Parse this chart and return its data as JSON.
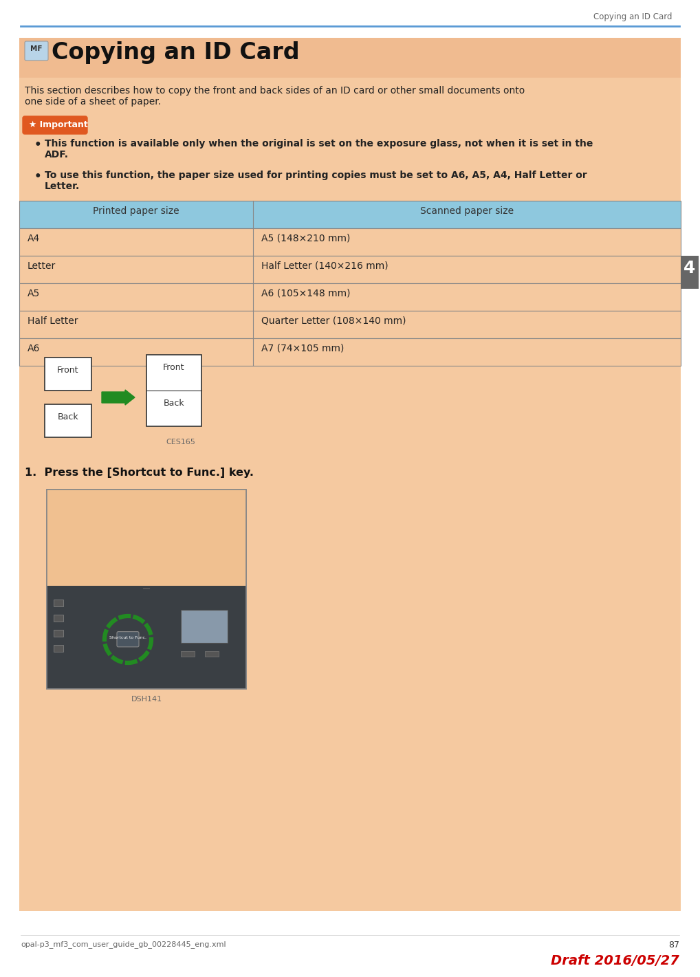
{
  "page_bg": "#ffffff",
  "content_bg": "#f5c9a0",
  "header_line_color": "#5b9bd5",
  "header_text": "Copying an ID Card",
  "title_text": "Copying an ID Card",
  "title_mf_bg": "#b8d4e8",
  "title_mf_text": "MF",
  "body_text1": "This section describes how to copy the front and back sides of an ID card or other small documents onto\none side of a sheet of paper.",
  "important_bg": "#e05820",
  "important_text": "★ Important",
  "bullet1": "This function is available only when the original is set on the exposure glass, not when it is set in the\nADF.",
  "bullet2": "To use this function, the paper size used for printing copies must be set to A6, A5, A4, Half Letter or\nLetter.",
  "table_header_bg": "#8ec8de",
  "table_row_bg": "#f5c9a0",
  "table_header": [
    "Printed paper size",
    "Scanned paper size"
  ],
  "table_rows": [
    [
      "A4",
      "A5 (148×210 mm)"
    ],
    [
      "Letter",
      "Half Letter (140×216 mm)"
    ],
    [
      "A5",
      "A6 (105×148 mm)"
    ],
    [
      "Half Letter",
      "Quarter Letter (108×140 mm)"
    ],
    [
      "A6",
      "A7 (74×105 mm)"
    ]
  ],
  "tab_bg": "#666666",
  "tab_text": "4",
  "ces_text": "CES165",
  "step1_text": "1.  Press the [Shortcut to Func.] key.",
  "dsh_text": "DSH141",
  "footer_left": "opal-p3_mf3_com_user_guide_gb_00228445_eng.xml",
  "footer_page": "87",
  "footer_draft": "Draft 2016/05/27",
  "footer_draft_color": "#cc0000",
  "arrow_color": "#228B22",
  "printer_top_bg": "#f5c9a0",
  "printer_body_bg": "#3a3f44",
  "green_circle_color": "#228B22"
}
